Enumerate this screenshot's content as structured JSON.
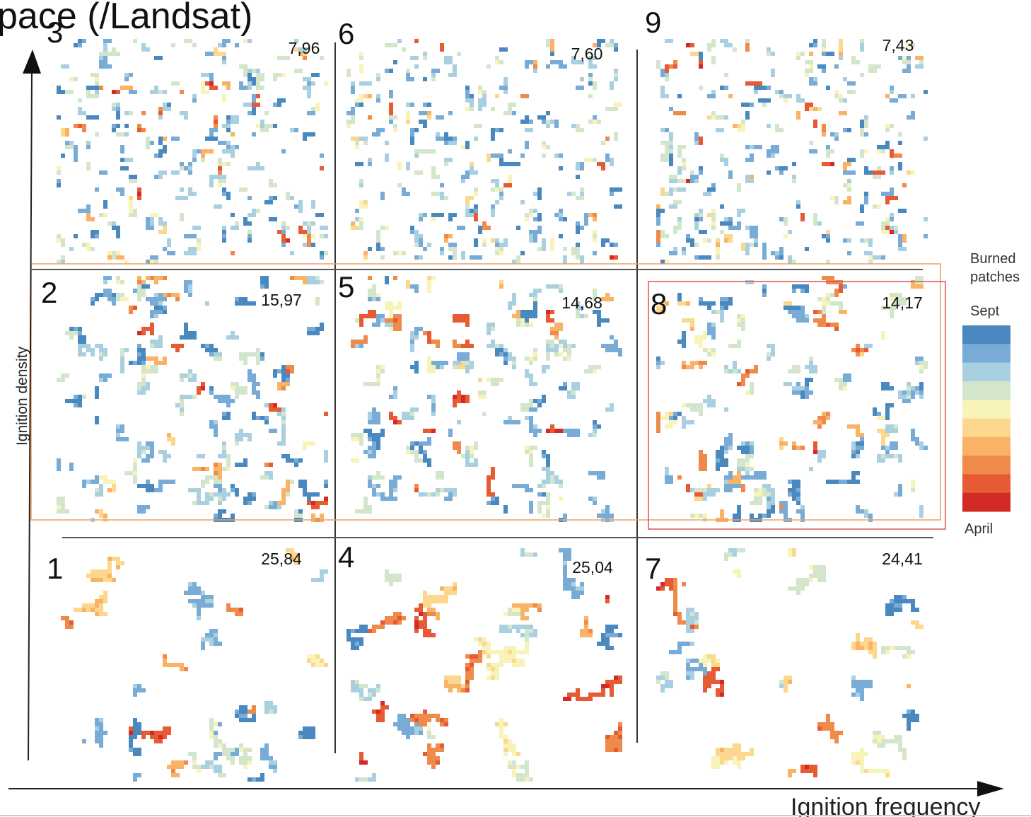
{
  "header": {
    "title": "pace (/Landsat)"
  },
  "panels": [
    {
      "label": "1",
      "value": "25,84"
    },
    {
      "label": "2",
      "value": "15,97"
    },
    {
      "label": "3",
      "value": "7,96"
    },
    {
      "label": "4",
      "value": "25,04"
    },
    {
      "label": "5",
      "value": "14,68"
    },
    {
      "label": "6",
      "value": "7,60"
    },
    {
      "label": "7",
      "value": "24,41"
    },
    {
      "label": "8",
      "value": "14,17"
    },
    {
      "label": "9",
      "value": "7,43"
    }
  ],
  "axes": {
    "x_label": "Ignition frequency",
    "y_label": "Ignition density"
  },
  "legend": {
    "title_line1": "Burned",
    "title_line2": "patches",
    "top": "Sept",
    "bottom": "April"
  }
}
